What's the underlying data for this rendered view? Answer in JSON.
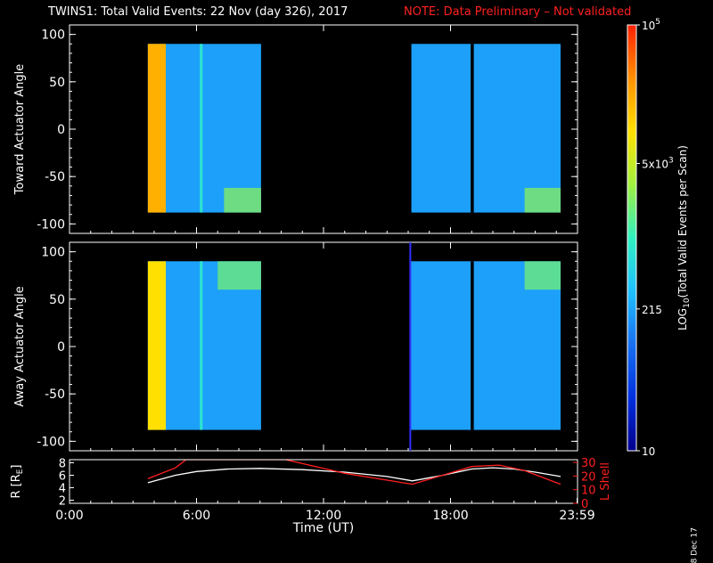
{
  "header": {
    "title": "TWINS1: Total Valid Events: 22 Nov (day 326), 2017",
    "note": "NOTE: Data Preliminary – Not validated"
  },
  "generated_label": "8 Dec 17",
  "colors": {
    "background": "#000000",
    "axes": "#ffffff",
    "note": "#ff2020",
    "r_line": "#ffffff",
    "lshell_line": "#ff2020",
    "colorscale": [
      "#00008c",
      "#0030e0",
      "#1870f0",
      "#20c0ff",
      "#30f0c0",
      "#a0f040",
      "#ffe000",
      "#ff9000",
      "#ff2000"
    ]
  },
  "chart_data": [
    {
      "type": "heatmap",
      "name": "toward",
      "ylabel": "Toward Actuator Angle",
      "xlim": [
        0,
        24
      ],
      "ylim": [
        -110,
        110
      ],
      "yticks": [
        100,
        50,
        0,
        -50,
        -100
      ],
      "data_blocks": [
        {
          "start_hr": 3.7,
          "end_hr": 9.05,
          "angle_min": -88,
          "angle_max": 90
        },
        {
          "start_hr": 16.15,
          "end_hr": 23.2,
          "angle_min": -88,
          "angle_max": 90
        }
      ],
      "data_gaps_hr": [
        [
          18.95,
          19.1
        ]
      ],
      "features": [
        {
          "desc": "high counts band",
          "start_hr": 3.7,
          "end_hr": 4.55,
          "log_level": 4.3
        },
        {
          "desc": "spike",
          "at_hr": 6.2,
          "log_level": 2.9
        },
        {
          "desc": "enhancement near -80 deg",
          "start_hr": 7.3,
          "end_hr": 9.05,
          "log_level": 3.4
        },
        {
          "desc": "enhancement near -80 deg",
          "start_hr": 21.5,
          "end_hr": 23.2,
          "log_level": 3.4
        }
      ],
      "background_log_level": 2.3
    },
    {
      "type": "heatmap",
      "name": "away",
      "ylabel": "Away Actuator Angle",
      "xlim": [
        0,
        24
      ],
      "ylim": [
        -110,
        110
      ],
      "yticks": [
        100,
        50,
        0,
        -50,
        -100
      ],
      "data_blocks": [
        {
          "start_hr": 3.7,
          "end_hr": 9.05,
          "angle_min": -88,
          "angle_max": 90
        },
        {
          "start_hr": 16.1,
          "end_hr": 23.2,
          "angle_min": -88,
          "angle_max": 90
        }
      ],
      "data_gaps_hr": [
        [
          18.95,
          19.1
        ]
      ],
      "features": [
        {
          "desc": "high counts band",
          "start_hr": 3.7,
          "end_hr": 4.55,
          "log_level": 4.0
        },
        {
          "desc": "spike",
          "at_hr": 6.2,
          "log_level": 2.9
        },
        {
          "desc": "enhancement near +80 deg",
          "start_hr": 7.0,
          "end_hr": 9.05,
          "log_level": 3.3
        },
        {
          "desc": "enhancement near +80 deg",
          "start_hr": 21.5,
          "end_hr": 23.2,
          "log_level": 3.3
        }
      ],
      "background_log_level": 2.3
    },
    {
      "type": "line",
      "name": "orbit",
      "ylabel_left": "R [R",
      "ylabel_left_sub": "E",
      "ylabel_left_end": "]",
      "ylabel_right": "L Shell",
      "xlabel": "Time (UT)",
      "xticks": [
        {
          "value": 0,
          "label": "0:00"
        },
        {
          "value": 6,
          "label": "6:00"
        },
        {
          "value": 12,
          "label": "12:00"
        },
        {
          "value": 18,
          "label": "18:00"
        },
        {
          "value": 23.98,
          "label": "23:59"
        }
      ],
      "ylim_left": [
        1.5,
        8.5
      ],
      "yticks_left": [
        8,
        6,
        4,
        2
      ],
      "ylim_right": [
        0,
        32
      ],
      "yticks_right": [
        30,
        20,
        10,
        0
      ],
      "series": [
        {
          "name": "R",
          "axis": "left",
          "x": [
            3.7,
            5.0,
            6.0,
            7.5,
            9.0,
            11.0,
            13.0,
            15.0,
            16.2,
            17.5,
            19.0,
            20.0,
            21.0,
            22.0,
            23.2
          ],
          "y": [
            4.8,
            6.0,
            6.6,
            7.0,
            7.1,
            6.9,
            6.5,
            5.8,
            5.1,
            5.9,
            7.0,
            7.2,
            7.0,
            6.5,
            5.8
          ]
        },
        {
          "name": "L Shell",
          "axis": "right",
          "x": [
            3.7,
            5.0,
            5.5,
            10.2,
            13.0,
            16.2,
            17.5,
            19.0,
            20.3,
            21.5,
            23.2
          ],
          "y": [
            18,
            26,
            32,
            32,
            22,
            14,
            20,
            27,
            28,
            24,
            14
          ]
        }
      ]
    }
  ],
  "colorbar": {
    "label": "LOG",
    "label_sub": "10",
    "label_end": "(Total Valid Events per Scan)",
    "log_min": 1,
    "log_max": 5,
    "ticks": [
      {
        "value": 5,
        "base": "10",
        "exp": "5"
      },
      {
        "value": 3.699,
        "base": "5x10",
        "exp": "3"
      },
      {
        "value": 2.332,
        "base": "215",
        "exp": ""
      },
      {
        "value": 1,
        "base": "10",
        "exp": ""
      }
    ]
  }
}
